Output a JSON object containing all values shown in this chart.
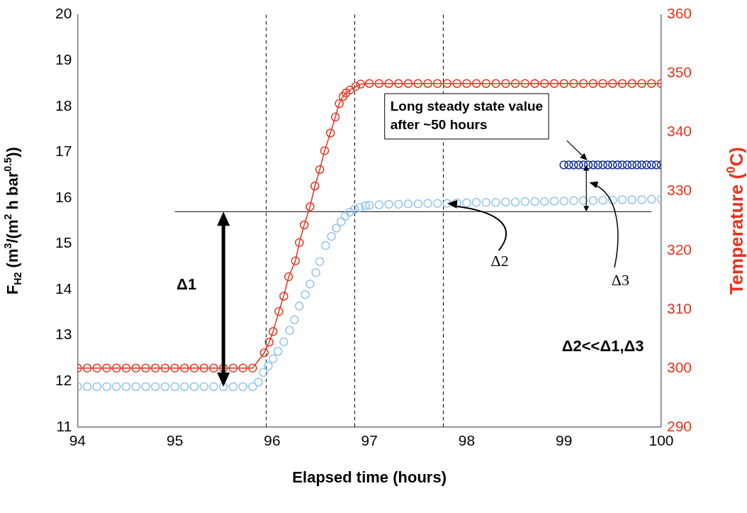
{
  "chart_data": {
    "type": "line",
    "xlabel": "Elapsed time (hours)",
    "ylabel": "F$_{H2}$ (m$^{3}$/(m$^{2}$ h bar$^{0.5}$))",
    "y2label": "Temperature ($^{0}$C)",
    "xlim": [
      94,
      100
    ],
    "xticks": [
      94,
      95,
      96,
      97,
      98,
      99,
      100
    ],
    "ylim": [
      11,
      20
    ],
    "yticks": [
      11,
      12,
      13,
      14,
      15,
      16,
      17,
      18,
      19,
      20
    ],
    "y2lim": [
      290,
      360
    ],
    "y2ticks": [
      290,
      300,
      310,
      320,
      330,
      340,
      350,
      360
    ],
    "grid": false,
    "marker": "circle",
    "series": [
      {
        "type": "line",
        "axis": "y2",
        "color": "#e8321e",
        "x": [
          94.0,
          94.1,
          94.2,
          94.3,
          94.4,
          94.5,
          94.6,
          94.7,
          94.8,
          94.9,
          95.0,
          95.1,
          95.2,
          95.3,
          95.4,
          95.5,
          95.6,
          95.7,
          95.8,
          95.92,
          95.97,
          96.01,
          96.07,
          96.12,
          96.17,
          96.24,
          96.28,
          96.33,
          96.39,
          96.44,
          96.49,
          96.54,
          96.6,
          96.65,
          96.69,
          96.73,
          96.76,
          96.8,
          96.86,
          96.91,
          97.0,
          97.1,
          97.2,
          97.3,
          97.4,
          97.5,
          97.6,
          97.7,
          97.8,
          97.9,
          98.0,
          98.1,
          98.2,
          98.3,
          98.4,
          98.5,
          98.6,
          98.7,
          98.8,
          98.9,
          99.0,
          99.1,
          99.2,
          99.3,
          99.4,
          99.5,
          99.6,
          99.7,
          99.8,
          99.9,
          100.0
        ],
        "values": [
          300,
          300,
          300,
          300,
          300,
          300,
          300,
          300,
          300,
          300,
          300,
          300,
          300,
          300,
          300,
          300,
          300,
          300,
          300,
          302.6,
          304.4,
          306.2,
          309.6,
          312.2,
          315.5,
          318.2,
          321.3,
          324.3,
          327.4,
          330.9,
          333.7,
          336.9,
          339.9,
          342.6,
          344.9,
          346.1,
          346.7,
          347.2,
          347.8,
          348.2,
          348.3,
          348.3,
          348.3,
          348.3,
          348.3,
          348.3,
          348.3,
          348.3,
          348.3,
          348.3,
          348.3,
          348.3,
          348.3,
          348.3,
          348.3,
          348.3,
          348.3,
          348.3,
          348.3,
          348.3,
          348.3,
          348.3,
          348.3,
          348.3,
          348.3,
          348.3,
          348.3,
          348.3,
          348.3,
          348.3,
          348.3
        ]
      },
      {
        "type": "scatter",
        "color": "#8fc0f0",
        "x": [
          94.0,
          94.1,
          94.2,
          94.3,
          94.4,
          94.5,
          94.6,
          94.7,
          94.8,
          94.9,
          95.0,
          95.1,
          95.2,
          95.3,
          95.4,
          95.5,
          95.6,
          95.7,
          95.8,
          95.86,
          95.91,
          95.96,
          96.01,
          96.06,
          96.12,
          96.18,
          96.23,
          96.28,
          96.34,
          96.39,
          96.45,
          96.49,
          96.55,
          96.61,
          96.66,
          96.71,
          96.75,
          96.8,
          96.85,
          96.9,
          96.96,
          97.0,
          97.1,
          97.2,
          97.3,
          97.4,
          97.5,
          97.6,
          97.7,
          97.8,
          97.9,
          98.0,
          98.1,
          98.2,
          98.3,
          98.4,
          98.5,
          98.6,
          98.7,
          98.8,
          98.9,
          99.0,
          99.1,
          99.2,
          99.3,
          99.4,
          99.5,
          99.6,
          99.7,
          99.8,
          99.9,
          100.0
        ],
        "values": [
          11.88,
          11.88,
          11.88,
          11.88,
          11.88,
          11.88,
          11.88,
          11.88,
          11.88,
          11.88,
          11.88,
          11.88,
          11.88,
          11.88,
          11.88,
          11.88,
          11.88,
          11.88,
          11.88,
          11.98,
          12.19,
          12.33,
          12.49,
          12.65,
          12.86,
          13.11,
          13.34,
          13.64,
          13.89,
          14.12,
          14.37,
          14.61,
          14.96,
          15.16,
          15.34,
          15.48,
          15.6,
          15.69,
          15.75,
          15.79,
          15.83,
          15.84,
          15.85,
          15.86,
          15.86,
          15.87,
          15.87,
          15.88,
          15.88,
          15.88,
          15.89,
          15.89,
          15.9,
          15.9,
          15.9,
          15.91,
          15.91,
          15.92,
          15.92,
          15.92,
          15.93,
          15.93,
          15.94,
          15.94,
          15.94,
          15.95,
          15.95,
          15.96,
          15.96,
          15.96,
          15.97,
          15.97
        ]
      },
      {
        "type": "scatter",
        "color": "#0a2896",
        "x": [
          99.0,
          99.05,
          99.1,
          99.15,
          99.2,
          99.25,
          99.3,
          99.35,
          99.4,
          99.45,
          99.5,
          99.55,
          99.6,
          99.65,
          99.7,
          99.75,
          99.8,
          99.85,
          99.9,
          99.95,
          100.0
        ],
        "values": [
          16.72,
          16.72,
          16.72,
          16.72,
          16.72,
          16.72,
          16.72,
          16.72,
          16.72,
          16.72,
          16.72,
          16.72,
          16.72,
          16.72,
          16.72,
          16.72,
          16.72,
          16.72,
          16.72,
          16.72,
          16.72
        ]
      }
    ],
    "ref_lines": [
      {
        "axis": "x",
        "value": 95.94,
        "color": "#000000",
        "line_style": "dashed"
      },
      {
        "axis": "x",
        "value": 96.85,
        "color": "#000000",
        "line_style": "dashed"
      },
      {
        "axis": "x",
        "value": 97.76,
        "color": "#000000",
        "line_style": "dashed"
      },
      {
        "axis": "y",
        "value": 15.7,
        "color": "#000000",
        "line_style": "solid"
      }
    ],
    "annotations": [
      "Long steady state value after ~50 hours",
      "Δ1",
      {
        "text": "Δ2",
        "x": 97.8,
        "y": 15.88
      },
      "Δ3",
      "Δ2<<Δ1,Δ3"
    ]
  }
}
